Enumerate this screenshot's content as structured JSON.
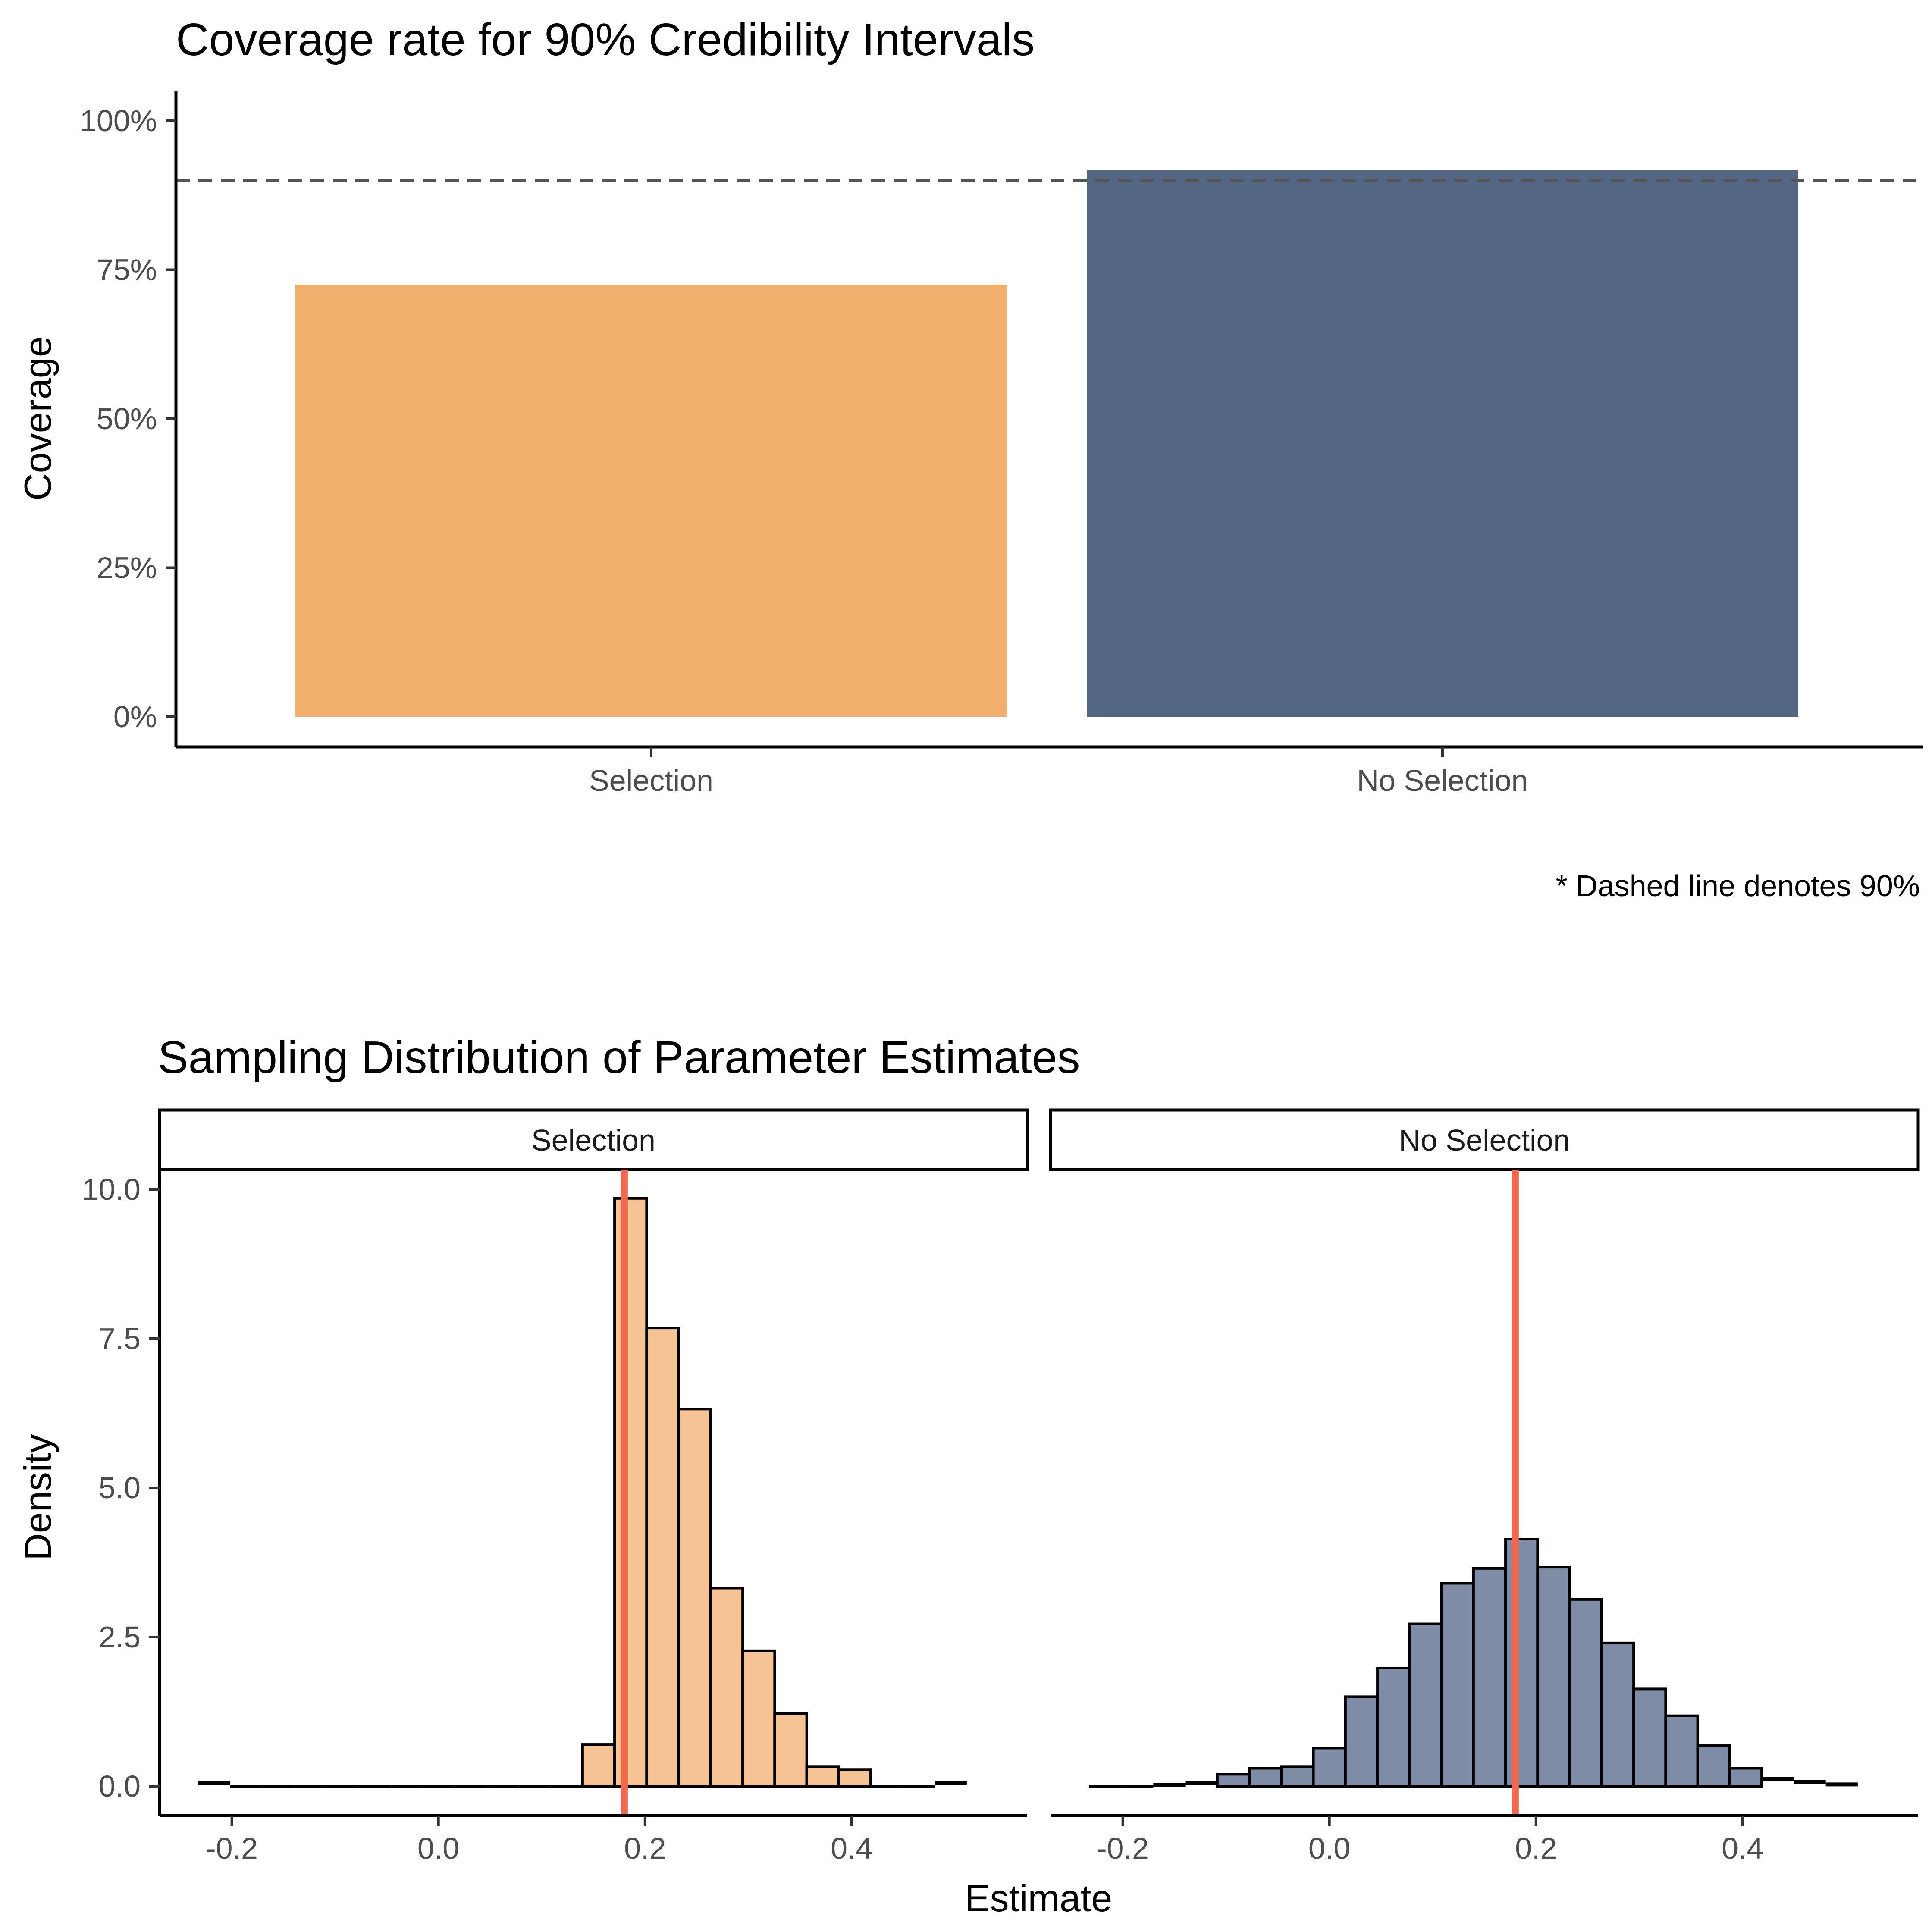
{
  "colors": {
    "selection": "#F2AE6D",
    "no_selection": "#536684",
    "selection_hist": "#F5C392",
    "no_selection_hist": "#7E8DA5",
    "true_value_line": "#F4674C",
    "reference_line": "#555555"
  },
  "chart_data": [
    {
      "type": "bar",
      "title": "Coverage rate for 90% Credibility Intervals",
      "xlabel": "",
      "ylabel": "Coverage",
      "categories": [
        "Selection",
        "No Selection"
      ],
      "values": [
        0.725,
        0.917
      ],
      "ylim": [
        0,
        1.05
      ],
      "yticks": [
        0,
        0.25,
        0.5,
        0.75,
        1.0
      ],
      "ytick_labels": [
        "0%",
        "25%",
        "50%",
        "75%",
        "100%"
      ],
      "xtick_labels": [
        "Selection",
        "No Selection"
      ],
      "reference_line": {
        "y": 0.9,
        "style": "dashed"
      },
      "caption": "* Dashed line denotes 90%",
      "grid": false,
      "legend": "none"
    },
    {
      "type": "bar",
      "subtype": "histogram",
      "title": "Sampling Distribution of Parameter Estimates",
      "xlabel": "Estimate",
      "ylabel": "Density",
      "xlim": [
        -0.27,
        0.57
      ],
      "ylim": [
        -0.4,
        10.4
      ],
      "xticks": [
        -0.2,
        0.0,
        0.2,
        0.4
      ],
      "xtick_labels": [
        "-0.2",
        "0.0",
        "0.2",
        "0.4"
      ],
      "yticks": [
        0,
        2.5,
        5.0,
        7.5,
        10.0
      ],
      "ytick_labels": [
        "0.0",
        "2.5",
        "5.0",
        "7.5",
        "10.0"
      ],
      "bin_start": -0.2325,
      "bin_width": 0.031,
      "true_value": 0.18,
      "grid": false,
      "legend": "none",
      "panels": [
        {
          "name": "Selection",
          "densities": [
            0.05,
            0,
            0,
            0,
            0,
            0,
            0,
            0,
            0,
            0,
            0,
            0,
            0.7,
            9.85,
            7.68,
            6.32,
            3.32,
            2.27,
            1.22,
            0.33,
            0.28,
            0,
            0,
            0.06
          ]
        },
        {
          "name": "No Selection",
          "densities": [
            0,
            0,
            0.02,
            0.05,
            0.2,
            0.3,
            0.33,
            0.64,
            1.5,
            1.98,
            2.72,
            3.4,
            3.65,
            4.14,
            3.67,
            3.13,
            2.4,
            1.63,
            1.18,
            0.68,
            0.3,
            0.12,
            0.07,
            0.03
          ]
        }
      ]
    }
  ]
}
